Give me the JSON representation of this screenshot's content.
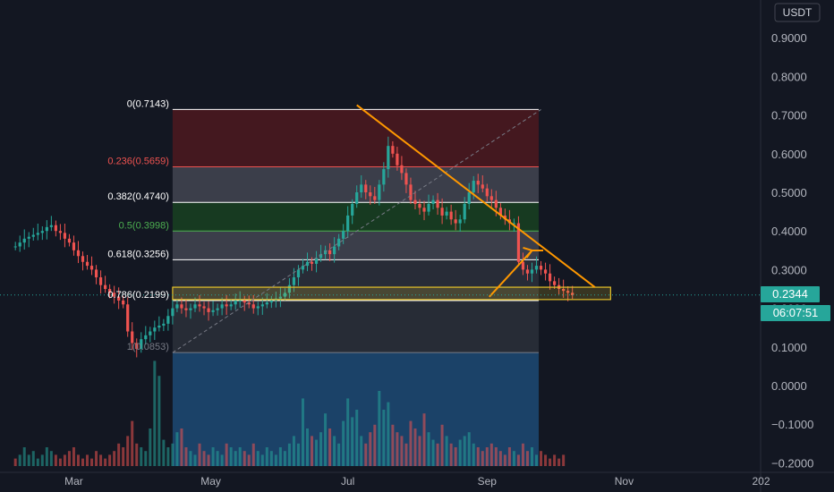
{
  "currency": "USDT",
  "price_tag": {
    "value": "0.2344",
    "color": "#26a69a"
  },
  "timer": {
    "value": "06:07:51",
    "color": "#26a69a"
  },
  "chart_data": {
    "type": "candlestick",
    "y_ticks": [
      "0.9000",
      "0.8000",
      "0.7000",
      "0.6000",
      "0.5000",
      "0.4000",
      "0.3000",
      "0.2000",
      "0.1000",
      "0.0000",
      "−0.1000",
      "−0.2000"
    ],
    "y_tick_values": [
      0.9,
      0.8,
      0.7,
      0.6,
      0.5,
      0.4,
      0.3,
      0.2,
      0.1,
      0.0,
      -0.1,
      -0.2
    ],
    "ylim": [
      -0.2,
      0.9
    ],
    "x_ticks": [
      "Mar",
      "May",
      "Jul",
      "Sep",
      "Nov",
      "202"
    ],
    "x_tick_days": [
      -54,
      7,
      68,
      130,
      191,
      252
    ],
    "fib_levels": [
      {
        "label": "0(0.7143)",
        "ratio": 0,
        "value": 0.7143,
        "color": "#ffffff",
        "zone_color": "#b71c1c",
        "zone_opacity": 0.3
      },
      {
        "label": "0.236(0.5659)",
        "ratio": 0.236,
        "value": 0.5659,
        "color": "#ef5350",
        "zone_color": "#787b86",
        "zone_opacity": 0.4
      },
      {
        "label": "0.382(0.4740)",
        "ratio": 0.382,
        "value": 0.474,
        "color": "#ffffff",
        "zone_color": "#1b5e20",
        "zone_opacity": 0.5
      },
      {
        "label": "0.5(0.3998)",
        "ratio": 0.5,
        "value": 0.3998,
        "color": "#4caf50",
        "zone_color": "#787b86",
        "zone_opacity": 0.4
      },
      {
        "label": "0.618(0.3256)",
        "ratio": 0.618,
        "value": 0.3256,
        "color": "#ffffff",
        "zone_color": "#787b86",
        "zone_opacity": 0.22
      },
      {
        "label": "0.786(0.2199)",
        "ratio": 0.786,
        "value": 0.2199,
        "color": "#ffffff",
        "zone_color": "#363a45",
        "zone_opacity": 0.6
      },
      {
        "label": "1(0.0853)",
        "ratio": 1,
        "value": 0.0853,
        "color": "#787b86",
        "zone_color": "#1e4e7a",
        "zone_opacity": 0.8
      }
    ],
    "fib_start_day": -10,
    "fib_end_day": 153,
    "yellow_box": {
      "y_top": 0.2545,
      "y_bottom": 0.2225,
      "start_day": -10,
      "end_day": 185,
      "color": "#e6c229"
    },
    "trendline_diagonal": [
      {
        "day": -10,
        "y": 0.0853
      },
      {
        "day": 154,
        "y": 0.7143
      }
    ],
    "trendline_down": [
      {
        "day": 72,
        "y": 0.7258
      },
      {
        "day": 178,
        "y": 0.2545
      }
    ],
    "projection_arrow": [
      {
        "day": 131,
        "y": 0.2296
      },
      {
        "day": 150,
        "y": 0.3496
      },
      {
        "day": 155,
        "y": 0.3496
      }
    ],
    "close_series": {
      "start_day": -80,
      "step_days": 2,
      "values": [
        0.36,
        0.37,
        0.38,
        0.385,
        0.39,
        0.395,
        0.4,
        0.41,
        0.415,
        0.4,
        0.395,
        0.38,
        0.37,
        0.35,
        0.335,
        0.32,
        0.31,
        0.3,
        0.28,
        0.26,
        0.25,
        0.24,
        0.23,
        0.22,
        0.21,
        0.14,
        0.11,
        0.095,
        0.12,
        0.13,
        0.14,
        0.15,
        0.155,
        0.16,
        0.18,
        0.2,
        0.21,
        0.2,
        0.195,
        0.2,
        0.21,
        0.205,
        0.2,
        0.19,
        0.195,
        0.2,
        0.21,
        0.205,
        0.21,
        0.22,
        0.22,
        0.215,
        0.21,
        0.2,
        0.205,
        0.21,
        0.215,
        0.22,
        0.225,
        0.23,
        0.24,
        0.26,
        0.28,
        0.3,
        0.31,
        0.32,
        0.315,
        0.33,
        0.34,
        0.35,
        0.34,
        0.36,
        0.38,
        0.4,
        0.44,
        0.47,
        0.5,
        0.52,
        0.5,
        0.49,
        0.48,
        0.52,
        0.56,
        0.62,
        0.6,
        0.57,
        0.55,
        0.52,
        0.48,
        0.47,
        0.46,
        0.45,
        0.47,
        0.48,
        0.46,
        0.44,
        0.45,
        0.43,
        0.42,
        0.43,
        0.47,
        0.5,
        0.53,
        0.52,
        0.51,
        0.49,
        0.48,
        0.46,
        0.44,
        0.43,
        0.42,
        0.42,
        0.32,
        0.3,
        0.29,
        0.3,
        0.31,
        0.3,
        0.29,
        0.27,
        0.26,
        0.25,
        0.245,
        0.24,
        0.234
      ]
    },
    "volume_series": [
      0.02,
      0.03,
      0.05,
      0.03,
      0.04,
      0.02,
      0.03,
      0.05,
      0.04,
      0.03,
      0.02,
      0.03,
      0.04,
      0.05,
      0.03,
      0.02,
      0.03,
      0.02,
      0.04,
      0.03,
      0.02,
      0.03,
      0.04,
      0.06,
      0.05,
      0.08,
      0.12,
      0.06,
      0.05,
      0.04,
      0.1,
      0.28,
      0.24,
      0.07,
      0.05,
      0.06,
      0.09,
      0.1,
      0.05,
      0.04,
      0.03,
      0.06,
      0.04,
      0.03,
      0.05,
      0.04,
      0.03,
      0.06,
      0.05,
      0.04,
      0.05,
      0.04,
      0.03,
      0.06,
      0.04,
      0.03,
      0.05,
      0.04,
      0.03,
      0.05,
      0.04,
      0.06,
      0.08,
      0.06,
      0.18,
      0.1,
      0.08,
      0.07,
      0.09,
      0.14,
      0.1,
      0.08,
      0.06,
      0.12,
      0.18,
      0.13,
      0.15,
      0.08,
      0.06,
      0.09,
      0.11,
      0.2,
      0.15,
      0.17,
      0.11,
      0.09,
      0.08,
      0.06,
      0.12,
      0.1,
      0.08,
      0.14,
      0.09,
      0.07,
      0.06,
      0.11,
      0.08,
      0.06,
      0.05,
      0.07,
      0.08,
      0.09,
      0.06,
      0.05,
      0.04,
      0.05,
      0.06,
      0.05,
      0.04,
      0.03,
      0.05,
      0.04,
      0.03,
      0.06,
      0.04,
      0.05,
      0.03,
      0.04,
      0.03,
      0.02,
      0.03,
      0.02,
      0.03
    ]
  }
}
